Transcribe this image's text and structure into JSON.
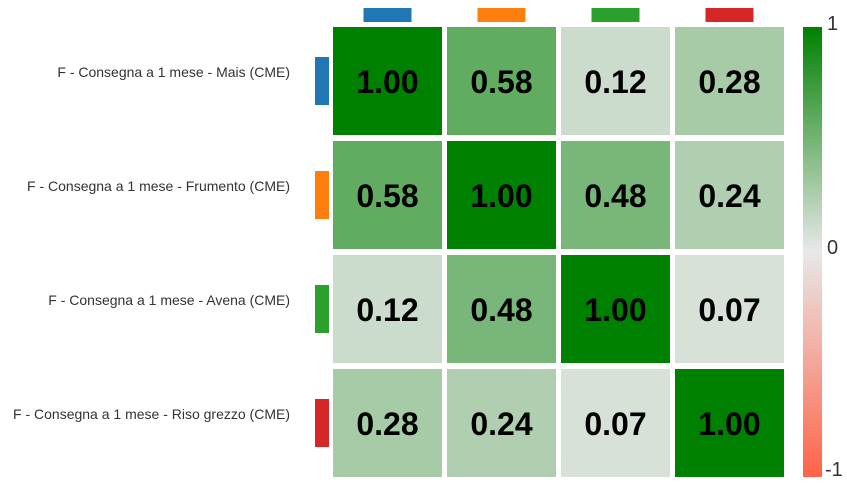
{
  "chart_data": {
    "type": "heatmap",
    "rows": [
      {
        "label": "F - Consegna a 1 mese - Mais (CME)",
        "marker_color": "#1f77b4"
      },
      {
        "label": "F - Consegna a 1 mese - Frumento (CME)",
        "marker_color": "#ff7f0e"
      },
      {
        "label": "F - Consegna a 1 mese - Avena (CME)",
        "marker_color": "#2ca02c"
      },
      {
        "label": "F - Consegna a 1 mese - Riso grezzo (CME)",
        "marker_color": "#d62728"
      }
    ],
    "columns": [
      {
        "marker_color": "#1f77b4"
      },
      {
        "marker_color": "#ff7f0e"
      },
      {
        "marker_color": "#2ca02c"
      },
      {
        "marker_color": "#d62728"
      }
    ],
    "values": [
      [
        1.0,
        0.58,
        0.12,
        0.28
      ],
      [
        0.58,
        1.0,
        0.48,
        0.24
      ],
      [
        0.12,
        0.48,
        1.0,
        0.07
      ],
      [
        0.28,
        0.24,
        0.07,
        1.0
      ]
    ],
    "value_labels": [
      [
        "1.00",
        "0.58",
        "0.12",
        "0.28"
      ],
      [
        "0.58",
        "1.00",
        "0.48",
        "0.24"
      ],
      [
        "0.12",
        "0.48",
        "1.00",
        "0.07"
      ],
      [
        "0.28",
        "0.24",
        "0.07",
        "1.00"
      ]
    ],
    "colorscale": {
      "min": -1,
      "mid": 0,
      "max": 1,
      "min_color": "#ff6347",
      "mid_color": "#e8e8e8",
      "max_color": "#008000",
      "tick_labels": [
        "1",
        "0",
        "-1"
      ]
    },
    "cell_text_color": "#000000"
  }
}
